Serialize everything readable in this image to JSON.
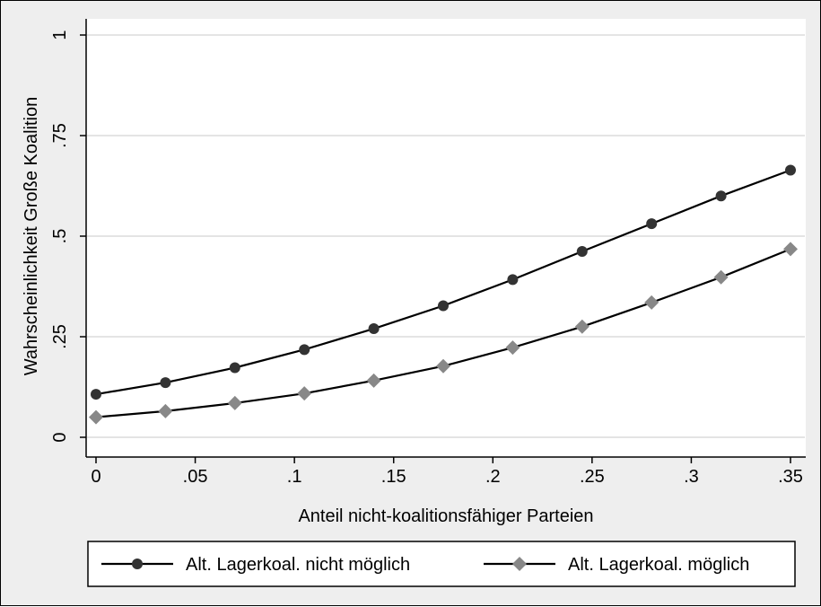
{
  "chart_data": {
    "type": "line",
    "xlabel": "Anteil nicht-koalitionsfähiger Parteien",
    "ylabel": "Wahrscheinlichkeit Große Koalition",
    "xlim": [
      0,
      0.35
    ],
    "ylim": [
      0,
      1
    ],
    "x_ticks": [
      0,
      0.05,
      0.1,
      0.15,
      0.2,
      0.25,
      0.3,
      0.35
    ],
    "x_tick_labels": [
      "0",
      ".05",
      ".1",
      ".15",
      ".2",
      ".25",
      ".3",
      ".35"
    ],
    "y_ticks": [
      0,
      0.25,
      0.5,
      0.75,
      1
    ],
    "y_tick_labels": [
      "0",
      ".25",
      ".5",
      ".75",
      "1"
    ],
    "grid": true,
    "legend_position": "bottom",
    "x": [
      0,
      0.035,
      0.07,
      0.105,
      0.14,
      0.175,
      0.21,
      0.245,
      0.28,
      0.315,
      0.35
    ],
    "series": [
      {
        "name": "Alt. Lagerkoal. nicht möglich",
        "marker": "circle",
        "line_color": "#000000",
        "marker_color": "#333333",
        "values": [
          0.107,
          0.136,
          0.173,
          0.218,
          0.27,
          0.327,
          0.392,
          0.462,
          0.531,
          0.6,
          0.664
        ]
      },
      {
        "name": "Alt. Lagerkoal. möglich",
        "marker": "diamond",
        "line_color": "#000000",
        "marker_color": "#888888",
        "values": [
          0.05,
          0.065,
          0.085,
          0.109,
          0.141,
          0.177,
          0.223,
          0.275,
          0.335,
          0.398,
          0.468
        ]
      }
    ]
  }
}
